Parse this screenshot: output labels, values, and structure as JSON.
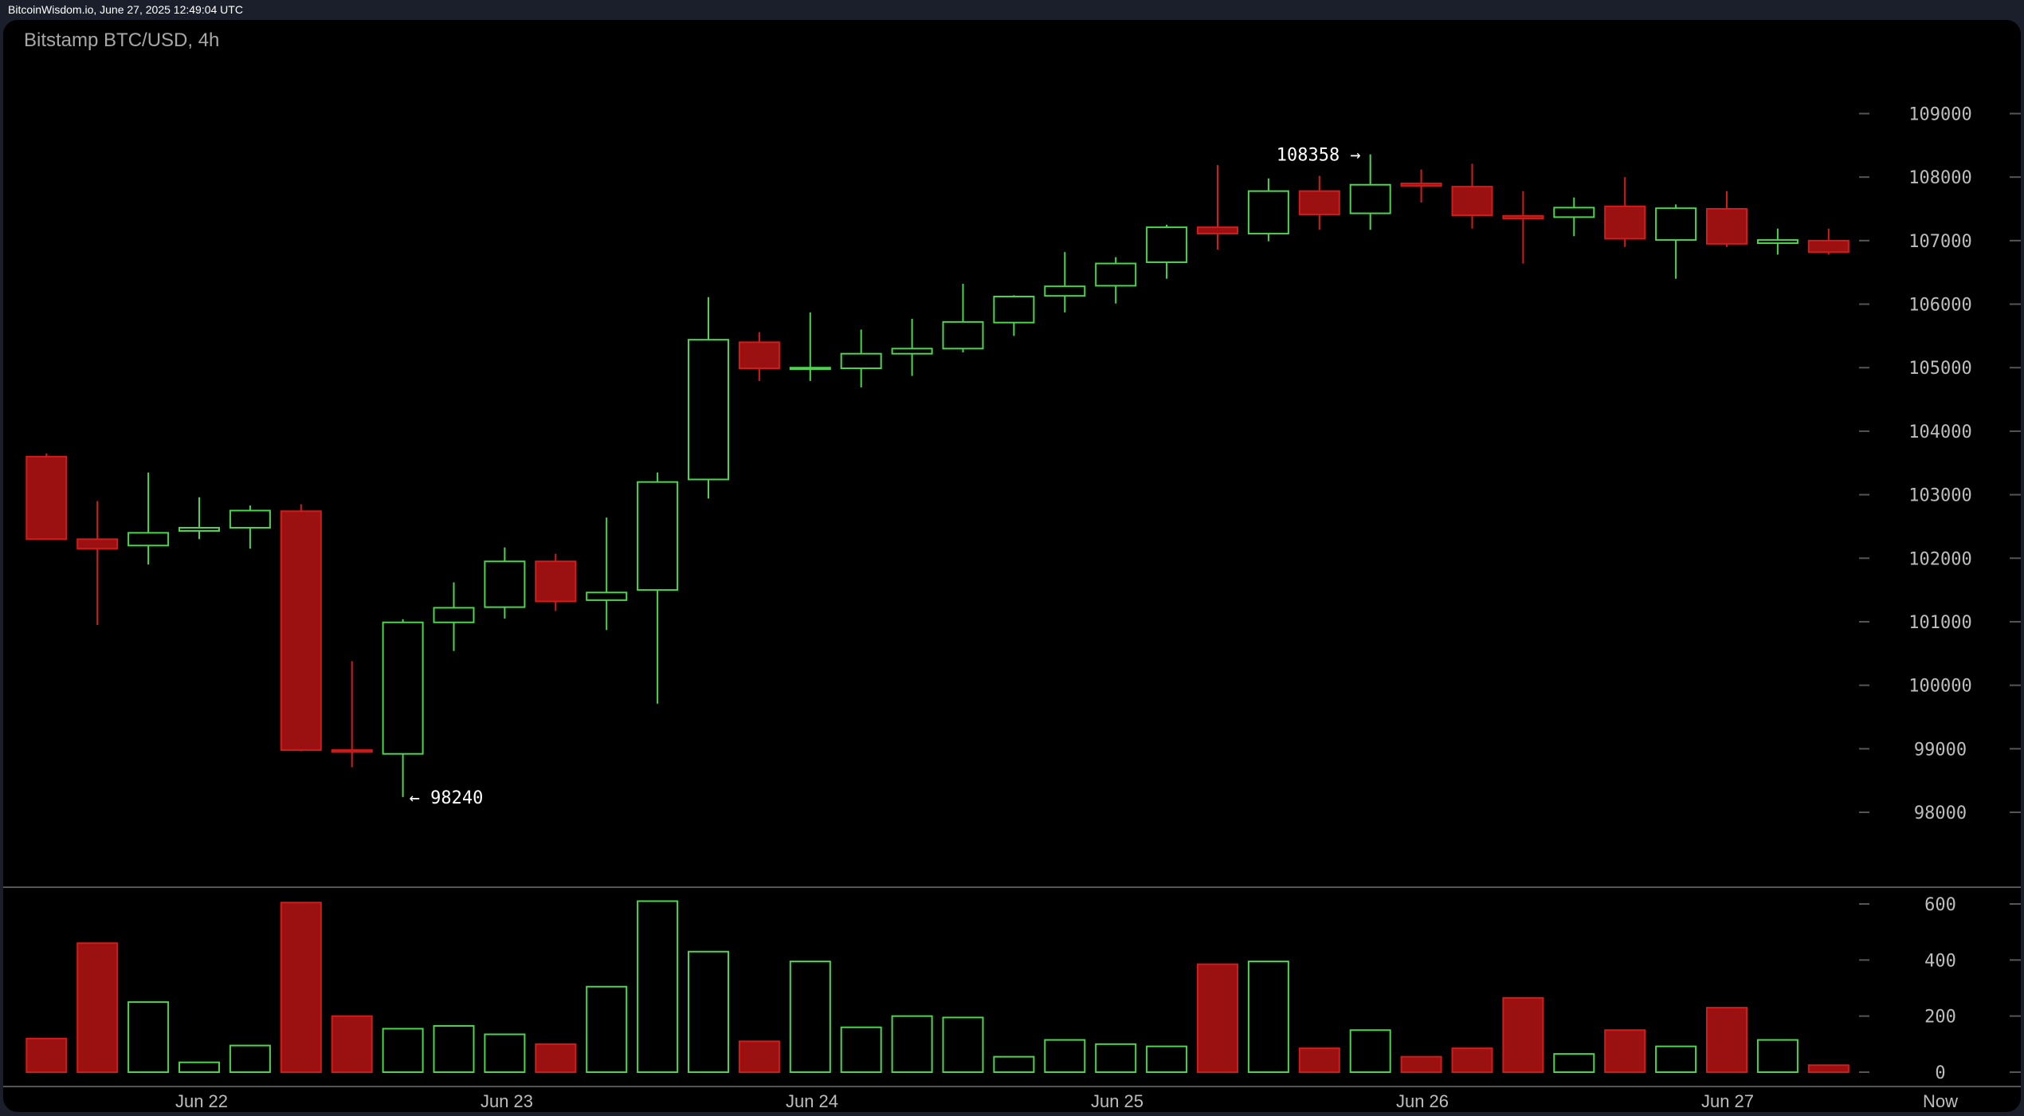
{
  "header": {
    "source": "BitcoinWisdom.io, June 27, 2025 12:49:04 UTC"
  },
  "chart_data": {
    "type": "candlestick",
    "title": "Bitstamp BTC/USD, 4h",
    "colors": {
      "up": "#4cd44c",
      "down_fill": "#9b1010",
      "down_stroke": "#d21c1c"
    },
    "price_ticks": [
      98000,
      99000,
      100000,
      101000,
      102000,
      103000,
      104000,
      105000,
      106000,
      107000,
      108000,
      109000
    ],
    "volume_ticks": [
      0,
      200,
      400,
      600
    ],
    "x_labels": [
      "Jun 22",
      "Jun 23",
      "Jun 24",
      "Jun 25",
      "Jun 26",
      "Jun 27",
      "Now"
    ],
    "annotations": {
      "high": "108358 →",
      "low": "← 98240"
    },
    "candles": [
      {
        "o": 103600,
        "h": 103650,
        "l": 102300,
        "c": 102300,
        "v": 120
      },
      {
        "o": 102300,
        "h": 102900,
        "l": 100950,
        "c": 102150,
        "v": 460
      },
      {
        "o": 102200,
        "h": 103350,
        "l": 101900,
        "c": 102400,
        "v": 250
      },
      {
        "o": 102430,
        "h": 102960,
        "l": 102300,
        "c": 102480,
        "v": 35
      },
      {
        "o": 102480,
        "h": 102830,
        "l": 102150,
        "c": 102750,
        "v": 95
      },
      {
        "o": 102740,
        "h": 102850,
        "l": 98960,
        "c": 98980,
        "v": 605
      },
      {
        "o": 98980,
        "h": 100380,
        "l": 98710,
        "c": 98950,
        "v": 200
      },
      {
        "o": 98920,
        "h": 101040,
        "l": 98240,
        "c": 100990,
        "v": 155
      },
      {
        "o": 100990,
        "h": 101620,
        "l": 100540,
        "c": 101220,
        "v": 165
      },
      {
        "o": 101230,
        "h": 102170,
        "l": 101050,
        "c": 101950,
        "v": 135
      },
      {
        "o": 101950,
        "h": 102070,
        "l": 101170,
        "c": 101320,
        "v": 100
      },
      {
        "o": 101340,
        "h": 102640,
        "l": 100870,
        "c": 101460,
        "v": 305
      },
      {
        "o": 101500,
        "h": 103350,
        "l": 99710,
        "c": 103200,
        "v": 610
      },
      {
        "o": 103240,
        "h": 106110,
        "l": 102940,
        "c": 105440,
        "v": 430
      },
      {
        "o": 105400,
        "h": 105560,
        "l": 104790,
        "c": 104990,
        "v": 110
      },
      {
        "o": 104990,
        "h": 105870,
        "l": 104790,
        "c": 105000,
        "v": 395
      },
      {
        "o": 104990,
        "h": 105600,
        "l": 104690,
        "c": 105220,
        "v": 160
      },
      {
        "o": 105220,
        "h": 105770,
        "l": 104870,
        "c": 105300,
        "v": 200
      },
      {
        "o": 105300,
        "h": 106320,
        "l": 105240,
        "c": 105720,
        "v": 195
      },
      {
        "o": 105710,
        "h": 106140,
        "l": 105500,
        "c": 106120,
        "v": 55
      },
      {
        "o": 106130,
        "h": 106820,
        "l": 105870,
        "c": 106280,
        "v": 115
      },
      {
        "o": 106290,
        "h": 106740,
        "l": 106010,
        "c": 106640,
        "v": 100
      },
      {
        "o": 106660,
        "h": 107250,
        "l": 106400,
        "c": 107210,
        "v": 92
      },
      {
        "o": 107210,
        "h": 108190,
        "l": 106860,
        "c": 107110,
        "v": 385
      },
      {
        "o": 107110,
        "h": 107980,
        "l": 106990,
        "c": 107780,
        "v": 395
      },
      {
        "o": 107780,
        "h": 108020,
        "l": 107170,
        "c": 107410,
        "v": 85
      },
      {
        "o": 107430,
        "h": 108358,
        "l": 107170,
        "c": 107880,
        "v": 150
      },
      {
        "o": 107900,
        "h": 108120,
        "l": 107600,
        "c": 107860,
        "v": 55
      },
      {
        "o": 107850,
        "h": 108210,
        "l": 107190,
        "c": 107400,
        "v": 85
      },
      {
        "o": 107390,
        "h": 107780,
        "l": 106640,
        "c": 107350,
        "v": 265
      },
      {
        "o": 107370,
        "h": 107680,
        "l": 107070,
        "c": 107520,
        "v": 65
      },
      {
        "o": 107540,
        "h": 108000,
        "l": 106900,
        "c": 107030,
        "v": 150
      },
      {
        "o": 107010,
        "h": 107570,
        "l": 106400,
        "c": 107510,
        "v": 92
      },
      {
        "o": 107500,
        "h": 107780,
        "l": 106900,
        "c": 106950,
        "v": 230
      },
      {
        "o": 106960,
        "h": 107190,
        "l": 106780,
        "c": 107010,
        "v": 115
      },
      {
        "o": 107000,
        "h": 107190,
        "l": 106780,
        "c": 106820,
        "v": 25
      }
    ]
  }
}
